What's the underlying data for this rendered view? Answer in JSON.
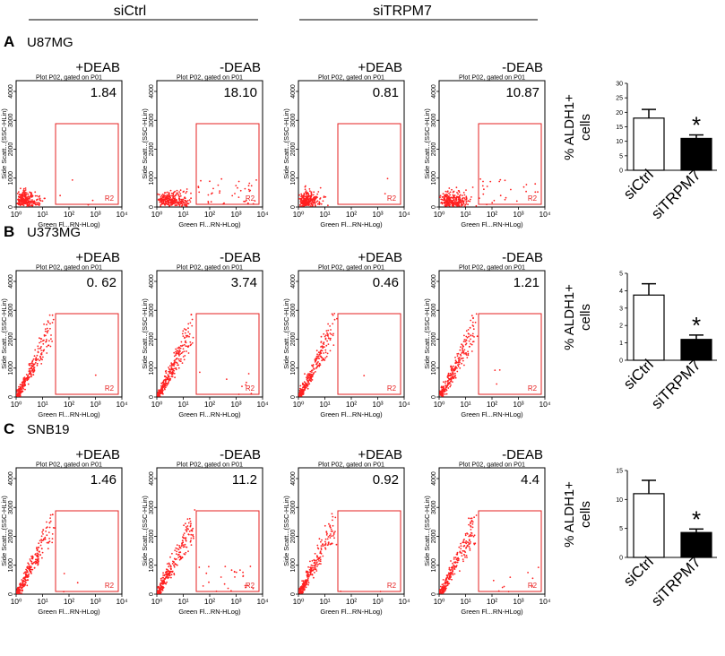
{
  "header": {
    "group_left": "siCtrl",
    "group_right": "siTRPM7"
  },
  "plot_labels": {
    "plot_title": "Plot P02,  gated on P01",
    "gate_label": "R2",
    "x_axis_label": "Green Fl...RN-HLog)",
    "y_axis_label": "Side Scatt...(SSC-HLin)",
    "x_ticks": [
      "10⁰",
      "10¹",
      "10²",
      "10³",
      "10⁴"
    ],
    "y_ticks": [
      "0",
      "1000",
      "2000",
      "3000",
      "4000"
    ]
  },
  "bar_labels": {
    "y_label_1": "% ALDH1+",
    "y_label_2": "cells",
    "significance": "*"
  },
  "colors": {
    "dots": "#ff2020",
    "gate": "#e62222",
    "bar_trpm7": "#000000",
    "bar_ctrl": "#ffffff"
  },
  "chart_data": [
    {
      "type": "scatter",
      "panel": "A",
      "cell_line": "U87MG",
      "flow_plots": [
        {
          "group": "siCtrl",
          "condition": "+DEAB",
          "percent_text": "1.84",
          "percent": 1.84
        },
        {
          "group": "siCtrl",
          "condition": "-DEAB",
          "percent_text": "18.10",
          "percent": 18.1
        },
        {
          "group": "siTRPM7",
          "condition": "+DEAB",
          "percent_text": "0.81",
          "percent": 0.81
        },
        {
          "group": "siTRPM7",
          "condition": "-DEAB",
          "percent_text": "10.87",
          "percent": 10.87
        }
      ],
      "bar": {
        "type": "bar",
        "categories": [
          "siCtrl",
          "siTRPM7"
        ],
        "values": [
          18,
          11
        ],
        "errors": [
          3,
          1.2
        ],
        "ylim": [
          0,
          30
        ],
        "yticks": [
          "0",
          "5",
          "10",
          "15",
          "20",
          "25",
          "30"
        ],
        "ylabel": "% ALDH1+ cells",
        "significant": [
          false,
          true
        ]
      }
    },
    {
      "type": "scatter",
      "panel": "B",
      "cell_line": "U373MG",
      "flow_plots": [
        {
          "group": "siCtrl",
          "condition": "+DEAB",
          "percent_text": "0. 62",
          "percent": 0.62
        },
        {
          "group": "siCtrl",
          "condition": "-DEAB",
          "percent_text": "3.74",
          "percent": 3.74
        },
        {
          "group": "siTRPM7",
          "condition": "+DEAB",
          "percent_text": "0.46",
          "percent": 0.46
        },
        {
          "group": "siTRPM7",
          "condition": "-DEAB",
          "percent_text": "1.21",
          "percent": 1.21
        }
      ],
      "bar": {
        "type": "bar",
        "categories": [
          "siCtrl",
          "siTRPM7"
        ],
        "values": [
          3.75,
          1.2
        ],
        "errors": [
          0.65,
          0.25
        ],
        "ylim": [
          0,
          5
        ],
        "yticks": [
          "0",
          "1",
          "2",
          "3",
          "4",
          "5"
        ],
        "ylabel": "% ALDH1+ cells",
        "significant": [
          false,
          true
        ]
      }
    },
    {
      "type": "scatter",
      "panel": "C",
      "cell_line": "SNB19",
      "flow_plots": [
        {
          "group": "siCtrl",
          "condition": "+DEAB",
          "percent_text": "1.46",
          "percent": 1.46
        },
        {
          "group": "siCtrl",
          "condition": "-DEAB",
          "percent_text": "11.2",
          "percent": 11.2
        },
        {
          "group": "siTRPM7",
          "condition": "+DEAB",
          "percent_text": "0.92",
          "percent": 0.92
        },
        {
          "group": "siTRPM7",
          "condition": "-DEAB",
          "percent_text": "4.4",
          "percent": 4.4
        }
      ],
      "bar": {
        "type": "bar",
        "categories": [
          "siCtrl",
          "siTRPM7"
        ],
        "values": [
          11,
          4.3
        ],
        "errors": [
          2.3,
          0.6
        ],
        "ylim": [
          0,
          15
        ],
        "yticks": [
          "0",
          "5",
          "10",
          "15"
        ],
        "ylabel": "% ALDH1+ cells",
        "significant": [
          false,
          true
        ]
      }
    }
  ]
}
